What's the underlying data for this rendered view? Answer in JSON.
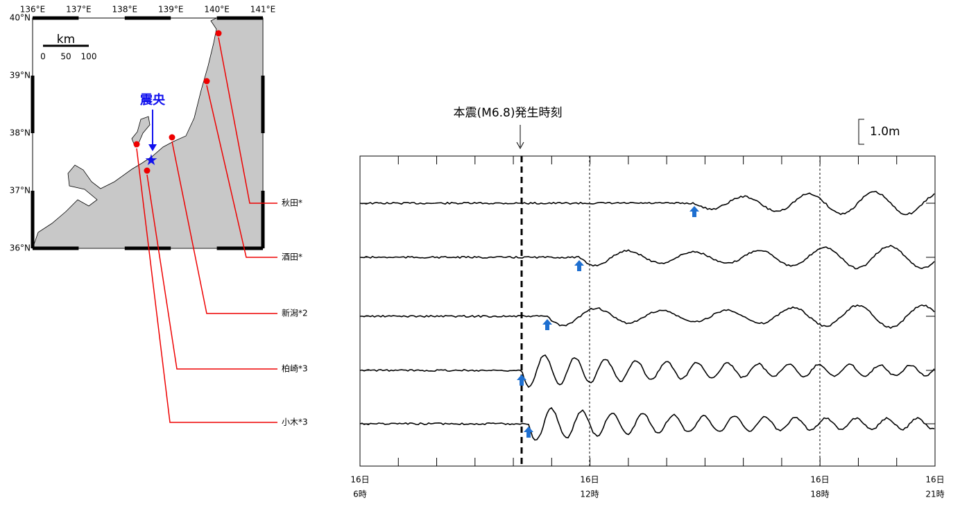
{
  "map": {
    "lon_labels": [
      "136°E",
      "137°E",
      "138°E",
      "139°E",
      "140°E",
      "141°E"
    ],
    "lat_labels": [
      "40°N",
      "39°N",
      "38°N",
      "37°N",
      "36°N"
    ],
    "scale": {
      "unit": "km",
      "ticks": [
        "0",
        "50",
        "100"
      ]
    },
    "epicenter_label": "震央"
  },
  "stations": [
    "秋田*",
    "酒田*",
    "新潟*2",
    "柏崎*3",
    "小木*3"
  ],
  "annotation": "本震(M6.8)発生時刻",
  "amplitude_scale": "1.0m",
  "x_labels": [
    {
      "day": "16日",
      "hour": "6時"
    },
    {
      "day": "16日",
      "hour": "12時"
    },
    {
      "day": "16日",
      "hour": "18時"
    },
    {
      "day": "16日",
      "hour": "21時"
    }
  ]
}
